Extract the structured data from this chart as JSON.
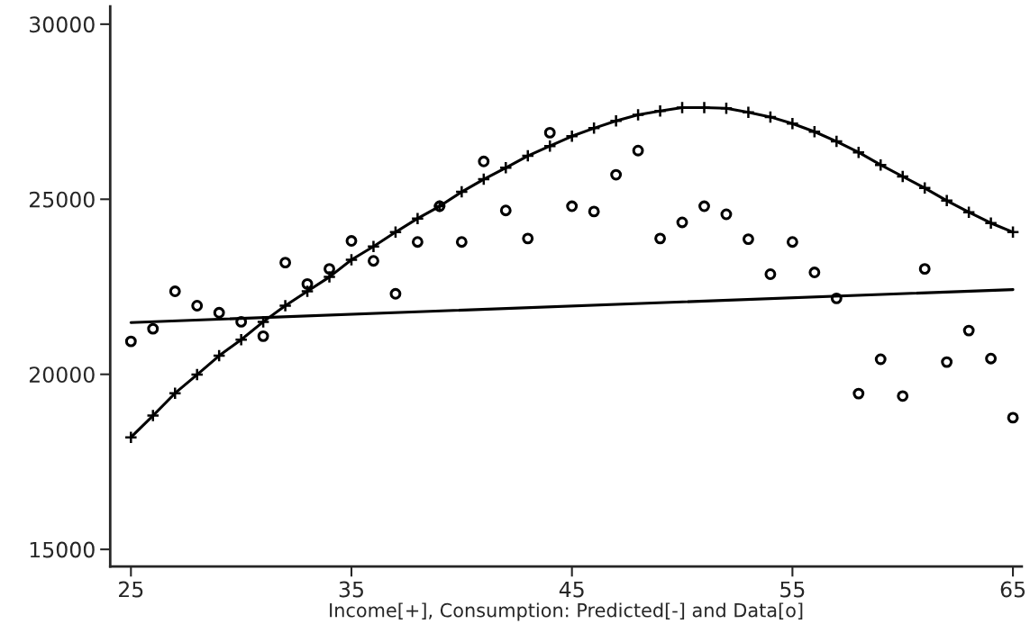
{
  "chart_data": {
    "type": "line",
    "xlabel": "Income[+], Consumption: Predicted[-] and Data[o]",
    "xlim": [
      24.06,
      65.4
    ],
    "ylim": [
      14510,
      30510
    ],
    "xticks": [
      25,
      35,
      45,
      55,
      65
    ],
    "yticks": [
      15000,
      20000,
      25000,
      30000
    ],
    "grid": false,
    "legend": false,
    "series": [
      {
        "marker": "cross",
        "color": "#000000",
        "x": [
          25,
          26,
          27,
          28,
          29,
          30,
          31,
          32,
          33,
          34,
          35,
          36,
          37,
          38,
          39,
          40,
          41,
          42,
          43,
          44,
          45,
          46,
          47,
          48,
          49,
          50,
          51,
          52,
          53,
          54,
          55,
          56,
          57,
          58,
          59,
          60,
          61,
          62,
          63,
          64,
          65
        ],
        "values": [
          18200,
          18820,
          19460,
          19990,
          20530,
          20990,
          21500,
          21960,
          22370,
          22780,
          23270,
          23650,
          24060,
          24450,
          24800,
          25210,
          25570,
          25900,
          26240,
          26520,
          26800,
          27030,
          27240,
          27410,
          27520,
          27620,
          27620,
          27600,
          27480,
          27350,
          27160,
          26930,
          26650,
          26340,
          25980,
          25650,
          25320,
          24960,
          24630,
          24320,
          24060
        ]
      },
      {
        "marker": "none",
        "color": "#000000",
        "x": [
          25,
          65
        ],
        "values": [
          21480,
          22420
        ]
      },
      {
        "type": "scatter",
        "marker": "circle",
        "color": "#000000",
        "x": [
          25,
          26,
          27,
          28,
          29,
          30,
          31,
          32,
          33,
          34,
          35,
          36,
          37,
          38,
          39,
          40,
          41,
          42,
          43,
          44,
          45,
          46,
          47,
          48,
          49,
          50,
          51,
          52,
          53,
          54,
          55,
          56,
          57,
          58,
          59,
          60,
          61,
          62,
          63,
          64,
          65
        ],
        "values": [
          20940,
          21300,
          22370,
          21960,
          21760,
          21500,
          21090,
          23190,
          22580,
          23010,
          23810,
          23240,
          22300,
          23780,
          24800,
          23780,
          26080,
          24680,
          23880,
          26900,
          24800,
          24650,
          25700,
          26390,
          23880,
          24340,
          24800,
          24570,
          23860,
          22860,
          23780,
          22910,
          22170,
          19450,
          20430,
          19380,
          23010,
          20350,
          21250,
          20450,
          18760
        ]
      }
    ]
  }
}
